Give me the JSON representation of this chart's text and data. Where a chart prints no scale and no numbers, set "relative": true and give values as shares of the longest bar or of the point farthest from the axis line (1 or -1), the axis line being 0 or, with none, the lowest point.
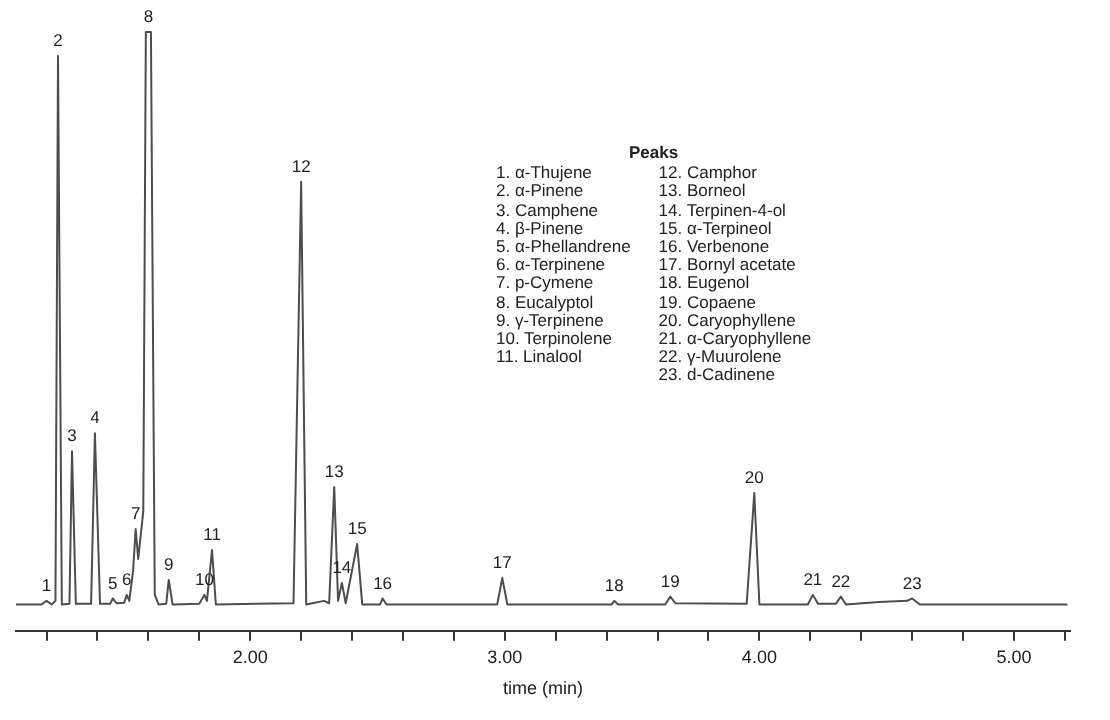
{
  "chart_data": {
    "type": "line",
    "relative": true,
    "xlabel": "time (min)",
    "color": "#4d4d4d",
    "marker": "none",
    "line_style": "solid",
    "grid": false,
    "legend": false,
    "xlim": [
      1.08,
      5.22
    ],
    "xticks": [
      {
        "value": 1.2,
        "label": null
      },
      {
        "value": 1.4,
        "label": null
      },
      {
        "value": 1.6,
        "label": null
      },
      {
        "value": 1.8,
        "label": null
      },
      {
        "value": 2,
        "label": "2.00"
      },
      {
        "value": 2.2,
        "label": null
      },
      {
        "value": 2.4,
        "label": null
      },
      {
        "value": 2.6,
        "label": null
      },
      {
        "value": 2.8,
        "label": null
      },
      {
        "value": 3,
        "label": "3.00"
      },
      {
        "value": 3.2,
        "label": null
      },
      {
        "value": 3.4,
        "label": null
      },
      {
        "value": 3.6,
        "label": null
      },
      {
        "value": 3.8,
        "label": null
      },
      {
        "value": 4,
        "label": "4.00"
      },
      {
        "value": 4.2,
        "label": null
      },
      {
        "value": 4.4,
        "label": null
      },
      {
        "value": 4.6,
        "label": null
      },
      {
        "value": 4.8,
        "label": null
      },
      {
        "value": 5,
        "label": "5.00"
      },
      {
        "value": 5.2,
        "label": null
      }
    ],
    "x": [
      1.08,
      1.18,
      1.2,
      1.22,
      1.235,
      1.245,
      1.26,
      1.29,
      1.3,
      1.315,
      1.375,
      1.39,
      1.41,
      1.45,
      1.46,
      1.475,
      1.505,
      1.515,
      1.525,
      1.54,
      1.55,
      1.56,
      1.58,
      1.59,
      1.61,
      1.625,
      1.64,
      1.67,
      1.68,
      1.695,
      1.8,
      1.82,
      1.83,
      1.85,
      1.865,
      2.17,
      2.2,
      2.22,
      2.29,
      2.31,
      2.33,
      2.345,
      2.36,
      2.375,
      2.42,
      2.44,
      2.51,
      2.52,
      2.535,
      2.97,
      2.99,
      3.01,
      3.42,
      3.43,
      3.445,
      3.63,
      3.65,
      3.67,
      3.95,
      3.98,
      4.0,
      4.19,
      4.21,
      4.23,
      4.3,
      4.32,
      4.34,
      4.47,
      4.58,
      4.6,
      4.63,
      5.21
    ],
    "values": [
      0.044,
      0.044,
      0.05,
      0.044,
      0.05,
      0.96,
      0.044,
      0.045,
      0.3,
      0.045,
      0.045,
      0.33,
      0.045,
      0.045,
      0.054,
      0.046,
      0.047,
      0.06,
      0.05,
      0.1,
      0.17,
      0.12,
      0.2,
      1.0,
      1.0,
      0.06,
      0.044,
      0.045,
      0.085,
      0.044,
      0.045,
      0.06,
      0.05,
      0.135,
      0.044,
      0.046,
      0.75,
      0.044,
      0.05,
      0.046,
      0.24,
      0.05,
      0.08,
      0.046,
      0.145,
      0.044,
      0.044,
      0.054,
      0.044,
      0.044,
      0.088,
      0.044,
      0.044,
      0.05,
      0.044,
      0.044,
      0.057,
      0.046,
      0.045,
      0.23,
      0.044,
      0.044,
      0.06,
      0.045,
      0.045,
      0.057,
      0.044,
      0.048,
      0.05,
      0.054,
      0.044,
      0.044
    ],
    "annotations": [
      {
        "text": "1",
        "x": 1.2,
        "y": 0.05
      },
      {
        "text": "2",
        "x": 1.245,
        "y": 0.96
      },
      {
        "text": "3",
        "x": 1.3,
        "y": 0.3
      },
      {
        "text": "4",
        "x": 1.39,
        "y": 0.33
      },
      {
        "text": "5",
        "x": 1.46,
        "y": 0.054
      },
      {
        "text": "6",
        "x": 1.515,
        "y": 0.06
      },
      {
        "text": "7",
        "x": 1.55,
        "y": 0.17
      },
      {
        "text": "8",
        "x": 1.6,
        "y": 1.0
      },
      {
        "text": "9",
        "x": 1.68,
        "y": 0.085
      },
      {
        "text": "10",
        "x": 1.82,
        "y": 0.06
      },
      {
        "text": "11",
        "x": 1.85,
        "y": 0.135
      },
      {
        "text": "12",
        "x": 2.2,
        "y": 0.75
      },
      {
        "text": "13",
        "x": 2.33,
        "y": 0.24
      },
      {
        "text": "14",
        "x": 2.36,
        "y": 0.08
      },
      {
        "text": "15",
        "x": 2.42,
        "y": 0.145
      },
      {
        "text": "16",
        "x": 2.52,
        "y": 0.054
      },
      {
        "text": "17",
        "x": 2.99,
        "y": 0.088
      },
      {
        "text": "18",
        "x": 3.43,
        "y": 0.05
      },
      {
        "text": "19",
        "x": 3.65,
        "y": 0.057
      },
      {
        "text": "20",
        "x": 3.98,
        "y": 0.23
      },
      {
        "text": "21",
        "x": 4.21,
        "y": 0.06
      },
      {
        "text": "22",
        "x": 4.32,
        "y": 0.057
      },
      {
        "text": "23",
        "x": 4.6,
        "y": 0.054
      },
      "Peaks",
      "1. α-Thujene",
      "2. α-Pinene",
      "3. Camphene",
      "4. β-Pinene",
      "5. α-Phellandrene",
      "6. α-Terpinene",
      "7. p-Cymene",
      "8. Eucalyptol",
      "9. γ-Terpinene",
      "10. Terpinolene",
      "11. Linalool",
      "12. Camphor",
      "13. Borneol",
      "14. Terpinen-4-ol",
      "15. α-Terpineol",
      "16. Verbenone",
      "17. Bornyl acetate",
      "18. Eugenol",
      "19. Copaene",
      "20. Caryophyllene",
      "21. α-Caryophyllene",
      "22. γ-Muurolene",
      "23. d-Cadinene"
    ]
  }
}
